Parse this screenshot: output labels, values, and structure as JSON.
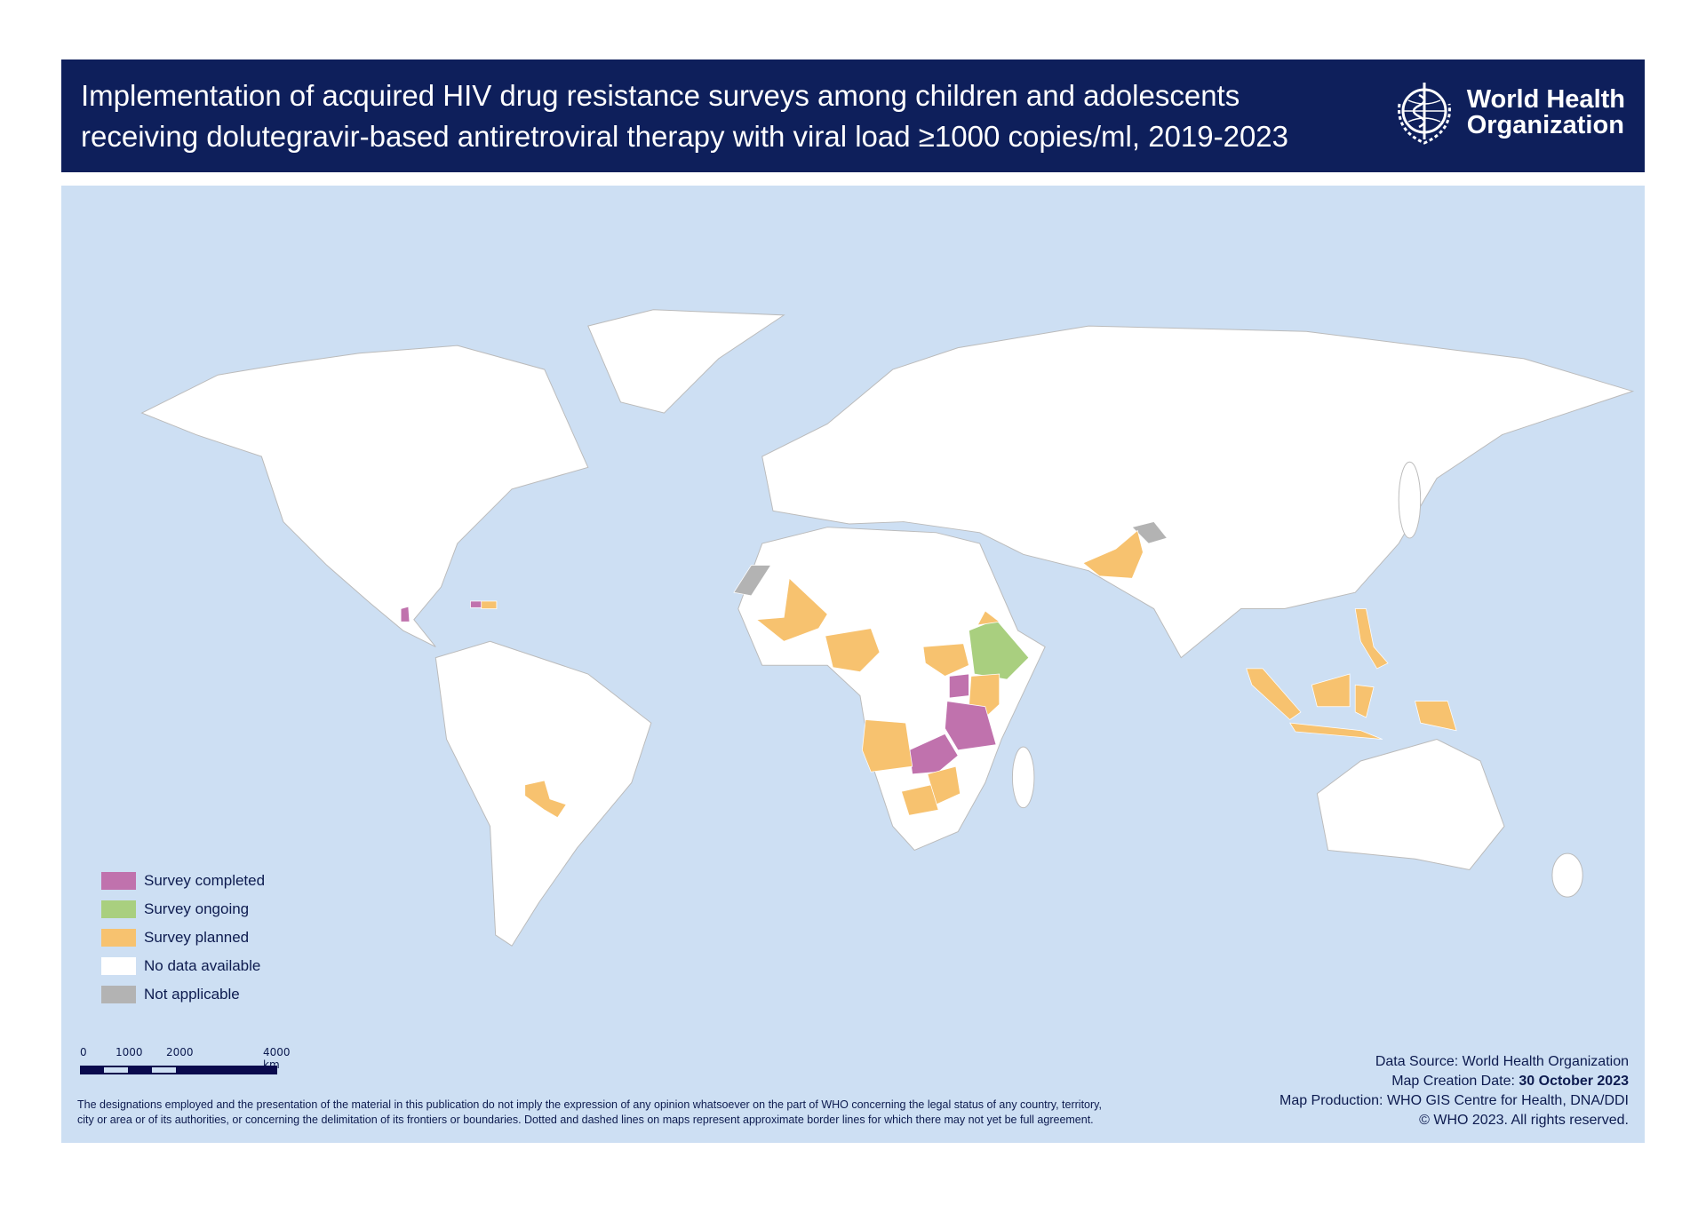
{
  "header": {
    "title_line1": "Implementation of acquired HIV drug resistance surveys among children and adolescents",
    "title_line2": "receiving dolutegravir-based antiretroviral therapy with viral load ≥1000 copies/ml, 2019-2023",
    "logo_line1": "World Health",
    "logo_line2": "Organization"
  },
  "legend": [
    {
      "label": "Survey completed",
      "color": "#c072ad"
    },
    {
      "label": "Survey ongoing",
      "color": "#a9cf7f"
    },
    {
      "label": "Survey planned",
      "color": "#f7c26f"
    },
    {
      "label": "No data available",
      "color": "#ffffff"
    },
    {
      "label": "Not applicable",
      "color": "#b3b3b3"
    }
  ],
  "map_colors": {
    "water": "#cddff3",
    "land": "#ffffff",
    "border": "#b5b5b5"
  },
  "countries": {
    "completed": [
      "Guatemala",
      "Haiti",
      "Uganda",
      "United Republic of Tanzania",
      "Malawi",
      "Zambia"
    ],
    "ongoing": [
      "Ethiopia"
    ],
    "planned": [
      "Dominican Republic",
      "Paraguay",
      "Mali",
      "Nigeria",
      "South Sudan",
      "Kenya",
      "Eritrea",
      "Angola",
      "Mozambique",
      "Botswana",
      "Zimbabwe",
      "Pakistan",
      "Philippines",
      "Indonesia",
      "Papua New Guinea"
    ],
    "not_applicable": [
      "Western Sahara",
      "Jammu and Kashmir"
    ]
  },
  "scale": {
    "ticks": [
      "0",
      "1000",
      "2000",
      "4000 km"
    ]
  },
  "disclaimer_line1": "The designations employed and the presentation of the material in this publication do not imply the expression of any opinion whatsoever on the part of WHO concerning the legal status of any country, territory,",
  "disclaimer_line2": "city or area or of its authorities, or concerning the delimitation of its frontiers or boundaries. Dotted and dashed lines on maps represent approximate border lines for which there may not yet be full agreement.",
  "credits": {
    "source": "Data Source: World Health Organization",
    "date_label": "Map Creation Date: ",
    "date_value": "30 October 2023",
    "production": "Map Production: WHO GIS Centre for Health, DNA/DDI",
    "copyright": "© WHO 2023. All rights reserved."
  }
}
